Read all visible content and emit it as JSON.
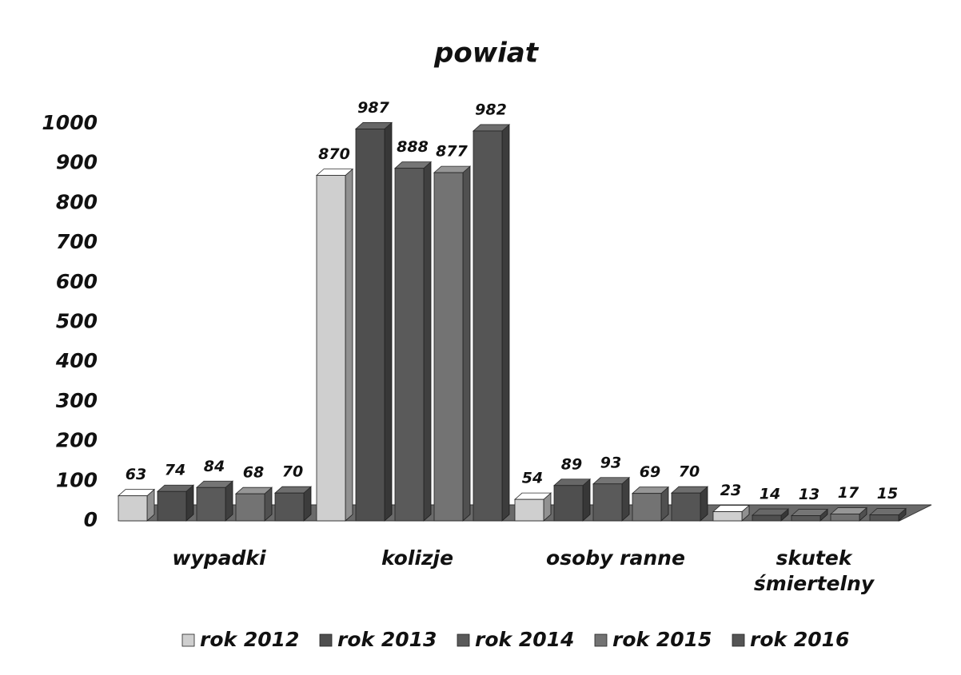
{
  "chart_data": {
    "type": "bar3d",
    "title": "powiat",
    "categories": [
      "wypadki",
      "kolizje",
      "osoby ranne",
      "skutek śmiertelny"
    ],
    "series": [
      {
        "name": "rok 2012",
        "color": "#cfcfcf",
        "values": [
          63,
          870,
          54,
          23
        ]
      },
      {
        "name": "rok 2013",
        "color": "#4f4f4f",
        "values": [
          74,
          987,
          89,
          14
        ]
      },
      {
        "name": "rok 2014",
        "color": "#5a5a5a",
        "values": [
          84,
          888,
          93,
          13
        ]
      },
      {
        "name": "rok 2015",
        "color": "#737373",
        "values": [
          68,
          877,
          69,
          17
        ]
      },
      {
        "name": "rok 2016",
        "color": "#555555",
        "values": [
          70,
          982,
          70,
          15
        ]
      }
    ],
    "ylim": [
      0,
      1000
    ],
    "yticks": [
      0,
      100,
      200,
      300,
      400,
      500,
      600,
      700,
      800,
      900,
      1000
    ],
    "grid": false,
    "legend": "bottom"
  }
}
